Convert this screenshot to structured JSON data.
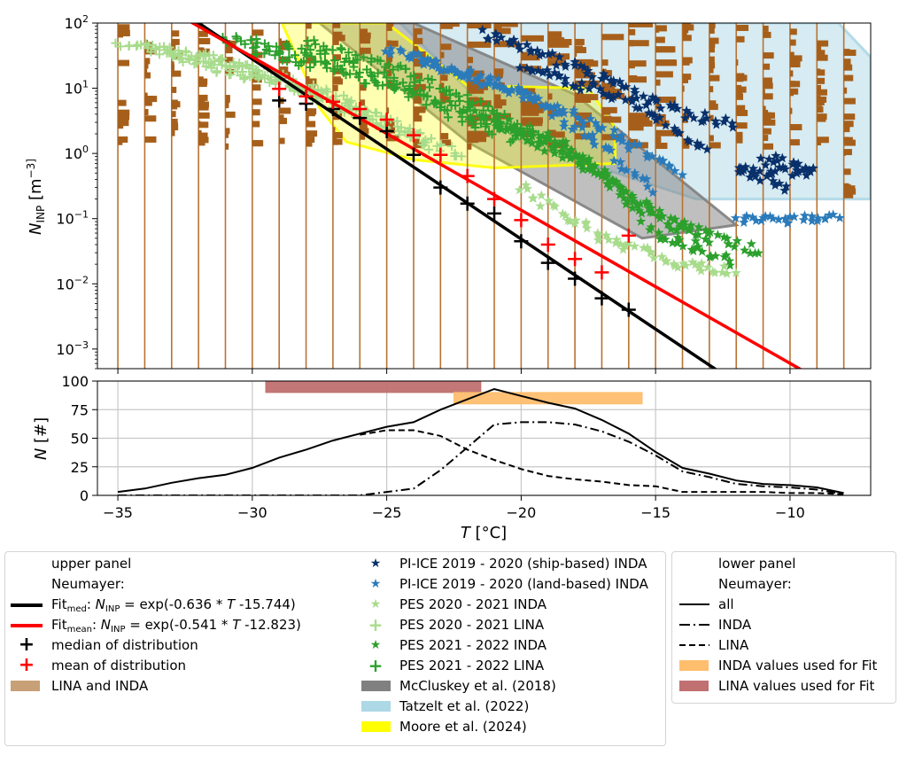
{
  "chart_data": [
    {
      "type": "scatter",
      "panel": "upper",
      "xlabel": "T [°C]",
      "ylabel": "N_INP [m^-3]",
      "ylabel_main": "N",
      "ylabel_sub": "INP",
      "ylabel_unit": " [m",
      "ylabel_unit_sup": "−3]",
      "yscale": "log",
      "xlim": [
        -35.76,
        -7.0
      ],
      "ylim": [
        0.0005,
        100
      ],
      "yticks": [
        {
          "value": 0.001,
          "base": "10",
          "exp": "−3"
        },
        {
          "value": 0.01,
          "base": "10",
          "exp": "−2"
        },
        {
          "value": 0.1,
          "base": "10",
          "exp": "−1"
        },
        {
          "value": 1,
          "base": "10",
          "exp": "0"
        },
        {
          "value": 10,
          "base": "10",
          "exp": "1"
        },
        {
          "value": 100,
          "base": "10",
          "exp": "2"
        }
      ],
      "xticks": [
        -35,
        -30,
        -25,
        -20,
        -15,
        -10
      ],
      "histogram_columns_T": [
        -35,
        -34,
        -33,
        -32,
        -31,
        -30,
        -29,
        -28,
        -27,
        -26,
        -25,
        -24,
        -23,
        -22,
        -21,
        -20,
        -19,
        -18,
        -17,
        -16,
        -15,
        -14,
        -13,
        -12,
        -11,
        -10,
        -9,
        -8
      ],
      "fit_median": {
        "slope": -0.636,
        "intercept": -15.744,
        "color": "#000000"
      },
      "fit_mean": {
        "slope": -0.541,
        "intercept": -12.823,
        "color": "#ff0000"
      },
      "median_markers": {
        "T": [
          -29,
          -28,
          -27,
          -26,
          -25,
          -24,
          -23,
          -22,
          -21,
          -20,
          -19,
          -18,
          -17,
          -16
        ],
        "N": [
          6.5,
          5.8,
          4.8,
          3.5,
          2.2,
          0.95,
          0.3,
          0.17,
          0.12,
          0.045,
          0.021,
          0.012,
          0.006,
          0.004
        ]
      },
      "mean_markers": {
        "T": [
          -29,
          -28,
          -27,
          -26,
          -25,
          -24,
          -23,
          -22,
          -21,
          -20,
          -19,
          -18,
          -17,
          -16
        ],
        "N": [
          9.8,
          7.5,
          6.2,
          4.8,
          3.3,
          1.9,
          0.95,
          0.45,
          0.2,
          0.095,
          0.04,
          0.024,
          0.015,
          0.055
        ]
      },
      "regions": [
        {
          "name": "Tatzelt et al. (2022)",
          "color": "#add8e6",
          "points": [
            [
              -24.5,
              100
            ],
            [
              -8.2,
              100
            ],
            [
              -7.0,
              30
            ],
            [
              -7.0,
              0.2
            ],
            [
              -13.5,
              0.2
            ],
            [
              -20,
              1.5
            ],
            [
              -24.5,
              100
            ]
          ]
        },
        {
          "name": "McCluskey et al. (2018)",
          "color": "#808080",
          "points": [
            [
              -27.5,
              100
            ],
            [
              -24,
              100
            ],
            [
              -18,
              8
            ],
            [
              -12,
              0.08
            ],
            [
              -15.5,
              0.05
            ],
            [
              -22,
              1.5
            ],
            [
              -27.5,
              100
            ]
          ]
        },
        {
          "name": "Moore et al. (2024)",
          "color": "#ffff00",
          "points": [
            [
              -28.9,
              100
            ],
            [
              -25,
              100
            ],
            [
              -22,
              11
            ],
            [
              -17.5,
              10
            ],
            [
              -16.5,
              2.5
            ],
            [
              -16.5,
              0.7
            ],
            [
              -21,
              0.6
            ],
            [
              -24,
              0.8
            ],
            [
              -26.5,
              1.5
            ],
            [
              -27.5,
              5
            ],
            [
              -28.9,
              100
            ]
          ]
        }
      ],
      "series": [
        {
          "name": "PI-ICE 2019 - 2020 (ship-based) INDA",
          "marker": "star",
          "color": "#08306b",
          "bands": [
            [
              [
                -21.5,
                70
              ],
              [
                -17,
                15
              ],
              [
                -14,
                4
              ],
              [
                -12,
                2.8
              ]
            ],
            [
              [
                -20,
                20
              ],
              [
                -16,
                7
              ],
              [
                -14,
                2
              ],
              [
                -13,
                1.2
              ]
            ],
            [
              [
                -11,
                0.9
              ],
              [
                -9,
                0.5
              ],
              [
                -12,
                0.6
              ],
              [
                -10,
                0.3
              ]
            ]
          ]
        },
        {
          "name": "PI-ICE 2019 - 2020 (land-based) INDA",
          "marker": "star",
          "color": "#2b7bba",
          "bands": [
            [
              [
                -25,
                40
              ],
              [
                -21,
                12
              ],
              [
                -17,
                2.5
              ],
              [
                -14,
                0.5
              ]
            ],
            [
              [
                -24,
                30
              ],
              [
                -20,
                8
              ],
              [
                -17,
                1.4
              ],
              [
                -15,
                0.25
              ]
            ],
            [
              [
                -12,
                0.1
              ],
              [
                -8,
                0.1
              ]
            ]
          ]
        },
        {
          "name": "PES 2020 - 2021 INDA",
          "marker": "star",
          "color": "#a8dc8c",
          "bands": [
            [
              [
                -20,
                0.3
              ],
              [
                -17,
                0.05
              ],
              [
                -14,
                0.02
              ],
              [
                -12,
                0.015
              ]
            ]
          ]
        },
        {
          "name": "PES 2020 - 2021 LINA",
          "marker": "plus",
          "color": "#a8dc8c",
          "bands": [
            [
              [
                -35,
                50
              ],
              [
                -31,
                25
              ],
              [
                -27,
                8
              ],
              [
                -24,
                2
              ],
              [
                -22,
                0.8
              ]
            ],
            [
              [
                -33,
                30
              ],
              [
                -29,
                12
              ],
              [
                -26,
                4
              ],
              [
                -23,
                1.2
              ]
            ],
            [
              [
                -34,
                45
              ],
              [
                -30,
                20
              ],
              [
                -27,
                6
              ],
              [
                -25,
                2.5
              ]
            ]
          ]
        },
        {
          "name": "PES 2021 - 2022 INDA",
          "marker": "star",
          "color": "#2ca02c",
          "bands": [
            [
              [
                -22,
                5
              ],
              [
                -18,
                1.0
              ],
              [
                -15,
                0.12
              ],
              [
                -13,
                0.04
              ]
            ],
            [
              [
                -21,
                3
              ],
              [
                -17,
                0.5
              ],
              [
                -15,
                0.06
              ],
              [
                -12,
                0.02
              ]
            ],
            [
              [
                -19,
                2
              ],
              [
                -16,
                0.2
              ],
              [
                -14,
                0.08
              ],
              [
                -11,
                0.03
              ]
            ]
          ]
        },
        {
          "name": "PES 2021 - 2022 LINA",
          "marker": "plus",
          "color": "#2ca02c",
          "bands": [
            [
              [
                -31,
                60
              ],
              [
                -28,
                35
              ],
              [
                -25,
                15
              ],
              [
                -22,
                4
              ],
              [
                -20,
                1.5
              ]
            ],
            [
              [
                -30,
                40
              ],
              [
                -27,
                20
              ],
              [
                -24,
                8
              ],
              [
                -21,
                2
              ]
            ],
            [
              [
                -28,
                50
              ],
              [
                -25,
                22
              ],
              [
                -22,
                7
              ],
              [
                -19,
                1.6
              ]
            ]
          ]
        }
      ]
    },
    {
      "type": "line",
      "panel": "lower",
      "xlabel": "T [°C]",
      "xlabel_main": "T",
      "xlabel_unit": " [°C]",
      "ylabel": "N [#]",
      "ylabel_main": "N",
      "ylabel_unit": " [#]",
      "xlim": [
        -35.76,
        -7.0
      ],
      "ylim": [
        0,
        100
      ],
      "yticks": [
        0,
        25,
        50,
        75,
        100
      ],
      "xticks": [
        -35,
        -30,
        -25,
        -20,
        -15,
        -10
      ],
      "xtick_labels": [
        "−35",
        "−30",
        "−25",
        "−20",
        "−15",
        "−10"
      ],
      "grid": true,
      "fit_ranges": [
        {
          "name": "LINA values used for Fit",
          "color": "#c07070",
          "T": [
            -29.5,
            -21.5
          ],
          "N": [
            90,
            100
          ]
        },
        {
          "name": "INDA values used for Fit",
          "color": "#ffbe6e",
          "T": [
            -22.5,
            -15.5
          ],
          "N": [
            80,
            90
          ]
        }
      ],
      "x": [
        -35,
        -34,
        -33,
        -32,
        -31,
        -30,
        -29,
        -28,
        -27,
        -26,
        -25,
        -24,
        -23,
        -22,
        -21,
        -20,
        -19,
        -18,
        -17,
        -16,
        -15,
        -14,
        -13,
        -12,
        -11,
        -10,
        -9,
        -8
      ],
      "series": [
        {
          "name": "all",
          "dash": "solid",
          "values": [
            3,
            6,
            11,
            15,
            18,
            24,
            33,
            40,
            48,
            54,
            60,
            64,
            75,
            84,
            93,
            87,
            81,
            76,
            66,
            54,
            38,
            24,
            19,
            13,
            10,
            9,
            7,
            2
          ]
        },
        {
          "name": "INDA",
          "dash": "dashdot",
          "values": [
            0,
            0,
            0,
            0,
            0,
            0,
            0,
            0,
            0,
            0,
            3,
            6,
            22,
            42,
            62,
            64,
            64,
            62,
            56,
            47,
            35,
            21,
            16,
            10,
            8,
            7,
            5,
            1
          ]
        },
        {
          "name": "LINA",
          "dash": "dashed",
          "values": [
            null,
            null,
            null,
            null,
            null,
            null,
            null,
            null,
            null,
            53,
            57,
            57,
            52,
            40,
            31,
            23,
            17,
            14,
            12,
            9,
            8,
            3,
            3,
            3,
            3,
            2,
            2,
            1
          ]
        }
      ]
    }
  ],
  "legend_upper": {
    "title1": "upper panel",
    "title2": "Neumayer:",
    "fit_med_prefix": "Fit",
    "fit_med_sub": "med",
    "fit_med_eq_a": ": ",
    "fit_med_N": "N",
    "fit_med_Nsub": "INP",
    "fit_med_eq_b": " = exp(-0.636 * ",
    "fit_med_T": "T",
    "fit_med_eq_c": " -15.744)",
    "fit_mean_prefix": "Fit",
    "fit_mean_sub": "mean",
    "fit_mean_eq_a": ": ",
    "fit_mean_N": "N",
    "fit_mean_Nsub": "INP",
    "fit_mean_eq_b": " = exp(-0.541 * ",
    "fit_mean_T": "T",
    "fit_mean_eq_c": " -12.823)",
    "median_label": "median of distribution",
    "mean_label": "mean of distribution",
    "lina_inda_label": "LINA and INDA",
    "lina_inda_color": "#c8a078"
  },
  "legend_datasets": {
    "items": [
      {
        "label": "PI-ICE 2019 - 2020 (ship-based) INDA",
        "glyph": "★",
        "color": "#08306b"
      },
      {
        "label": "PI-ICE 2019 - 2020 (land-based) INDA",
        "glyph": "★",
        "color": "#2b7bba"
      },
      {
        "label": "PES 2020 - 2021 INDA",
        "glyph": "★",
        "color": "#a8dc8c"
      },
      {
        "label": "PES 2020 - 2021 LINA",
        "glyph": "+",
        "color": "#a8dc8c"
      },
      {
        "label": "PES 2021 - 2022 INDA",
        "glyph": "★",
        "color": "#2ca02c"
      },
      {
        "label": "PES 2021 - 2022 LINA",
        "glyph": "+",
        "color": "#2ca02c"
      },
      {
        "label": "McCluskey et al. (2018)",
        "patch": "#808080"
      },
      {
        "label": "Tatzelt et al. (2022)",
        "patch": "#add8e6"
      },
      {
        "label": "Moore et al. (2024)",
        "patch": "#ffff00"
      }
    ]
  },
  "legend_lower": {
    "title1": "lower panel",
    "title2": "Neumayer:",
    "all_label": "all",
    "inda_label": "INDA",
    "lina_label": "LINA",
    "inda_fit_label": "INDA values used for Fit",
    "lina_fit_label": "LINA values used for Fit"
  },
  "colors": {
    "histogram": "#a65f1a",
    "histogram_line": "#b87333"
  }
}
